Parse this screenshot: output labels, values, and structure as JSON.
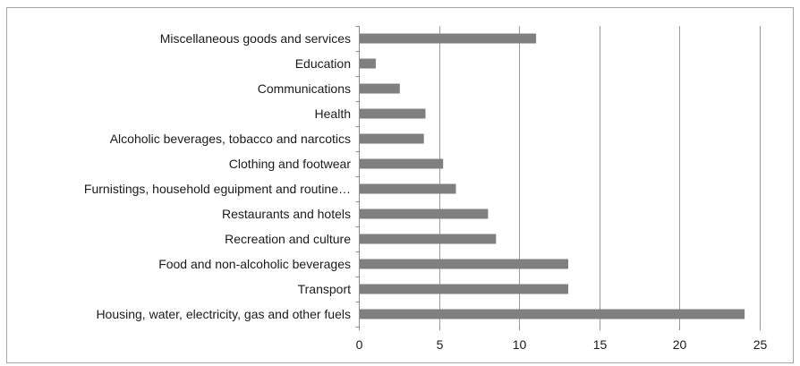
{
  "chart_data": {
    "type": "bar",
    "orientation": "horizontal",
    "categories": [
      "Miscellaneous goods and services",
      "Education",
      "Communications",
      "Health",
      "Alcoholic beverages, tobacco and narcotics",
      "Clothing and footwear",
      "Furnistings, household eguipment and routine…",
      "Restaurants and hotels",
      "Recreation and culture",
      "Food and non-alcoholic beverages",
      "Transport",
      "Housing, water, electricity, gas and other fuels"
    ],
    "values": [
      11,
      1,
      2.5,
      4.1,
      4,
      5.2,
      6,
      8,
      8.5,
      13,
      13,
      24
    ],
    "xlim": [
      0,
      25
    ],
    "xticks": [
      0,
      5,
      10,
      15,
      20,
      25
    ],
    "grid": "vertical",
    "legend": "none",
    "title": "",
    "xlabel": "",
    "ylabel": "",
    "bar_color": "#7f7f7f"
  }
}
